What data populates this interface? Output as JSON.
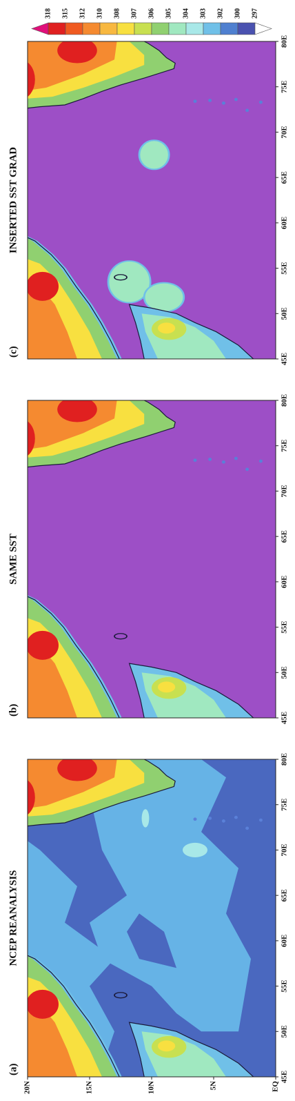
{
  "panels": [
    {
      "label": "(a)",
      "title": "NCEP REANALYSIS"
    },
    {
      "label": "(b)",
      "title": "SAME SST"
    },
    {
      "label": "(c)",
      "title": "INSERTED SST GRAD"
    }
  ],
  "lon_range": [
    45,
    80
  ],
  "lat_range": [
    0,
    20
  ],
  "lon_ticks": [
    {
      "value": 45,
      "label": "45E"
    },
    {
      "value": 50,
      "label": "50E"
    },
    {
      "value": 55,
      "label": "55E"
    },
    {
      "value": 60,
      "label": "60E"
    },
    {
      "value": 65,
      "label": "65E"
    },
    {
      "value": 70,
      "label": "70E"
    },
    {
      "value": 75,
      "label": "75E"
    },
    {
      "value": 80,
      "label": "80E"
    }
  ],
  "lat_ticks": [
    {
      "value": 0,
      "label": "EQ"
    },
    {
      "value": 5,
      "label": "5N"
    },
    {
      "value": 10,
      "label": "10N"
    },
    {
      "value": 15,
      "label": "15N"
    },
    {
      "value": 20,
      "label": "20N"
    }
  ],
  "colorbar": {
    "levels": [
      318,
      315,
      312,
      310,
      308,
      307,
      306,
      305,
      304,
      303,
      302,
      300,
      297
    ],
    "colors": [
      "#e0107a",
      "#e02020",
      "#f05a20",
      "#f58a30",
      "#f8b840",
      "#f8e040",
      "#c8e050",
      "#90d070",
      "#a0e8c0",
      "#a8e8e8",
      "#70c0e8",
      "#4f80d0",
      "#4a52b0",
      "#9d4fc6",
      "#ffffff"
    ]
  }
}
